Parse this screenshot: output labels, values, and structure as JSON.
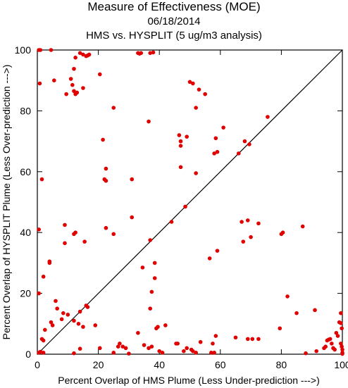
{
  "chart_data": {
    "type": "scatter",
    "title": "Measure of Effectiveness (MOE)",
    "subtitle_date": "06/18/2014",
    "subtitle": "HMS vs. HYSPLIT  (5 ug/m3 analysis)",
    "xlabel": "Percent Overlap of HMS Plume (Less Under-prediction --->)",
    "ylabel": "Percent Overlap of HYSPLIT Plume (Less Over-prediction --->)",
    "xlim": [
      0,
      100
    ],
    "ylim": [
      0,
      100
    ],
    "xticks": [
      "0",
      "20",
      "40",
      "60",
      "80",
      "100"
    ],
    "yticks": [
      "0",
      "20",
      "40",
      "60",
      "80",
      "100"
    ],
    "grid": false,
    "diagonal_line": true,
    "point_color": "#e00000",
    "line_color": "#000000",
    "points": [
      [
        0.5,
        100
      ],
      [
        1,
        100
      ],
      [
        4.5,
        100
      ],
      [
        0.8,
        89
      ],
      [
        5.5,
        90
      ],
      [
        9.5,
        85.5
      ],
      [
        11,
        90.5
      ],
      [
        11.5,
        88.5
      ],
      [
        12,
        86.5
      ],
      [
        12.5,
        85.5
      ],
      [
        13,
        86
      ],
      [
        12,
        93.8
      ],
      [
        12.5,
        97.5
      ],
      [
        14,
        99
      ],
      [
        15,
        98.5
      ],
      [
        16,
        98
      ],
      [
        16.5,
        98.2
      ],
      [
        17,
        98.5
      ],
      [
        15,
        87.5
      ],
      [
        20.5,
        92
      ],
      [
        25,
        81
      ],
      [
        33,
        99
      ],
      [
        33.5,
        98.8
      ],
      [
        34,
        99
      ],
      [
        37,
        99
      ],
      [
        38,
        99.2
      ],
      [
        21.5,
        70.5
      ],
      [
        22.5,
        61
      ],
      [
        22,
        57.5
      ],
      [
        22.5,
        57
      ],
      [
        31,
        57.5
      ],
      [
        31,
        45
      ],
      [
        36.5,
        76.5
      ],
      [
        46.5,
        72
      ],
      [
        47,
        70
      ],
      [
        47,
        68.5
      ],
      [
        49,
        71.5
      ],
      [
        47,
        61.5
      ],
      [
        48.5,
        48.5
      ],
      [
        51,
        89
      ],
      [
        50,
        89.5
      ],
      [
        52,
        81
      ],
      [
        53,
        87
      ],
      [
        55,
        85.5
      ],
      [
        58,
        66
      ],
      [
        58.5,
        71
      ],
      [
        59,
        66.5
      ],
      [
        61,
        74.5
      ],
      [
        52,
        59.5
      ],
      [
        66,
        66
      ],
      [
        68,
        70
      ],
      [
        69.5,
        69
      ],
      [
        75.5,
        78
      ],
      [
        1.5,
        57.5
      ],
      [
        0.5,
        41
      ],
      [
        9,
        42.5
      ],
      [
        12,
        39.5
      ],
      [
        12.5,
        40
      ],
      [
        15.5,
        37
      ],
      [
        9,
        36.5
      ],
      [
        25,
        39.5
      ],
      [
        22.5,
        41.5
      ],
      [
        37,
        37.5
      ],
      [
        44,
        43.5
      ],
      [
        67,
        43.5
      ],
      [
        67.5,
        37
      ],
      [
        69,
        44
      ],
      [
        70,
        38.5
      ],
      [
        72.5,
        43
      ],
      [
        80,
        39.5
      ],
      [
        80.5,
        40
      ],
      [
        87,
        42
      ],
      [
        4,
        30.5
      ],
      [
        4,
        30
      ],
      [
        2,
        25.5
      ],
      [
        34.5,
        28.5
      ],
      [
        38.5,
        30
      ],
      [
        38.5,
        25
      ],
      [
        37.5,
        20.5
      ],
      [
        37,
        15
      ],
      [
        56.5,
        31.5
      ],
      [
        59,
        34
      ],
      [
        82,
        19
      ],
      [
        0.5,
        20
      ],
      [
        1.5,
        5
      ],
      [
        2,
        4.5
      ],
      [
        2.5,
        8
      ],
      [
        4.5,
        10.5
      ],
      [
        5,
        9.5
      ],
      [
        6,
        17.5
      ],
      [
        6.5,
        15
      ],
      [
        8,
        11.5
      ],
      [
        8.5,
        13.5
      ],
      [
        10,
        13
      ],
      [
        12,
        11
      ],
      [
        14,
        14
      ],
      [
        16,
        16
      ],
      [
        16.5,
        15.5
      ],
      [
        13.5,
        10
      ],
      [
        15,
        9
      ],
      [
        19,
        9.5
      ],
      [
        20.5,
        2
      ],
      [
        25,
        0.5
      ],
      [
        26.5,
        2.5
      ],
      [
        27,
        3.5
      ],
      [
        28,
        2.5
      ],
      [
        29,
        2
      ],
      [
        33,
        7
      ],
      [
        35,
        3
      ],
      [
        36.5,
        2
      ],
      [
        37.5,
        2.5
      ],
      [
        39,
        8.5
      ],
      [
        39.5,
        9
      ],
      [
        42,
        9.5
      ],
      [
        40,
        1
      ],
      [
        41,
        0.5
      ],
      [
        45.5,
        3.5
      ],
      [
        46,
        3.5
      ],
      [
        48,
        1
      ],
      [
        49,
        2
      ],
      [
        50.5,
        1.5
      ],
      [
        51,
        1
      ],
      [
        52,
        0.5
      ],
      [
        53.5,
        4
      ],
      [
        57,
        0.5
      ],
      [
        58,
        0.5
      ],
      [
        57.5,
        3.5
      ],
      [
        58.5,
        6
      ],
      [
        65,
        5.5
      ],
      [
        69,
        5
      ],
      [
        70.5,
        5
      ],
      [
        72.5,
        5
      ],
      [
        79.5,
        8.5
      ],
      [
        85,
        13.5
      ],
      [
        91,
        14.5
      ],
      [
        91.5,
        1
      ],
      [
        94,
        2
      ],
      [
        94.5,
        2.5
      ],
      [
        95,
        4.5
      ],
      [
        95.5,
        4.8
      ],
      [
        96,
        5
      ],
      [
        96.5,
        3.5
      ],
      [
        97,
        2
      ],
      [
        97.5,
        1.5
      ],
      [
        98,
        7
      ],
      [
        98.5,
        6
      ],
      [
        99,
        10.5
      ],
      [
        99.5,
        13.5
      ],
      [
        99.5,
        10.2
      ],
      [
        99.8,
        8.5
      ],
      [
        99.5,
        3.5
      ],
      [
        99.8,
        2.5
      ],
      [
        100,
        1.5
      ],
      [
        100,
        0.5
      ],
      [
        0.5,
        0.5
      ],
      [
        1,
        0.8
      ],
      [
        2,
        0.5
      ],
      [
        12,
        0.3
      ],
      [
        14,
        1.8
      ],
      [
        30,
        0.2
      ],
      [
        88,
        0.3
      ],
      [
        100,
        0.1
      ]
    ]
  }
}
